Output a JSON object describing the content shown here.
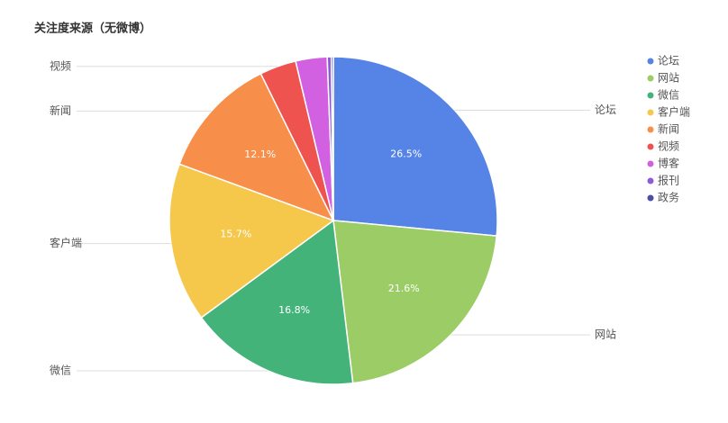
{
  "chart_data": {
    "type": "pie",
    "title": "关注度来源（无微博）",
    "categories": [
      "论坛",
      "网站",
      "微信",
      "客户端",
      "新闻",
      "视频",
      "博客",
      "报刊",
      "政务"
    ],
    "values": [
      26.5,
      21.6,
      16.8,
      15.7,
      12.1,
      3.6,
      3.1,
      0.4,
      0.2
    ],
    "value_labels": [
      "26.5%",
      "21.6%",
      "16.8%",
      "15.7%",
      "12.1%",
      null,
      null,
      null,
      null
    ],
    "colors": [
      "#5584e6",
      "#9ccc65",
      "#43b37a",
      "#f5c84c",
      "#f78f4a",
      "#ef5350",
      "#d161e0",
      "#8e5bd8",
      "#4b4ea8"
    ],
    "legend": "right"
  }
}
